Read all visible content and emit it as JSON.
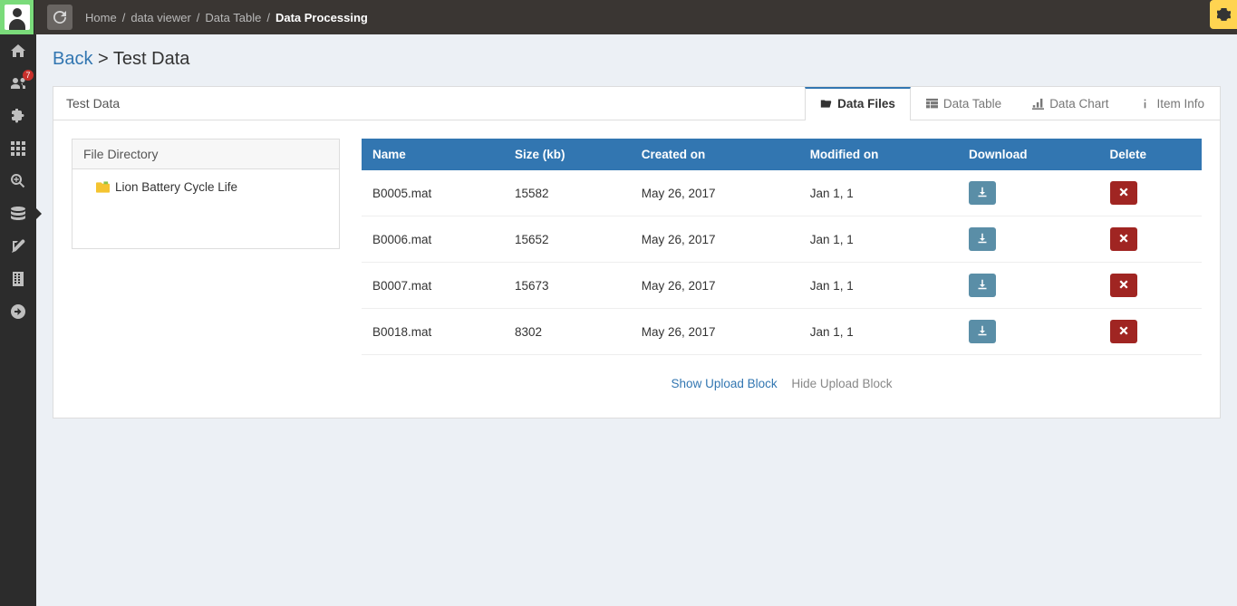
{
  "breadcrumb": {
    "home": "Home",
    "dataviewer": "data viewer",
    "datatable": "Data Table",
    "current": "Data Processing"
  },
  "sidebar": {
    "users_badge": "7"
  },
  "page": {
    "back_label": "Back",
    "separator": " > ",
    "title": "Test Data"
  },
  "panel": {
    "title": "Test Data"
  },
  "tabs": {
    "data_files": "Data Files",
    "data_table": "Data Table",
    "data_chart": "Data Chart",
    "item_info": "Item Info"
  },
  "file_directory": {
    "heading": "File Directory",
    "root_label": "Lion Battery Cycle Life"
  },
  "table": {
    "headers": {
      "name": "Name",
      "size": "Size (kb)",
      "created": "Created on",
      "modified": "Modified on",
      "download": "Download",
      "delete": "Delete"
    },
    "rows": [
      {
        "name": "B0005.mat",
        "size": "15582",
        "created": "May 26, 2017",
        "modified": "Jan 1, 1"
      },
      {
        "name": "B0006.mat",
        "size": "15652",
        "created": "May 26, 2017",
        "modified": "Jan 1, 1"
      },
      {
        "name": "B0007.mat",
        "size": "15673",
        "created": "May 26, 2017",
        "modified": "Jan 1, 1"
      },
      {
        "name": "B0018.mat",
        "size": "8302",
        "created": "May 26, 2017",
        "modified": "Jan 1, 1"
      }
    ]
  },
  "upload": {
    "show": "Show Upload Block",
    "hide": "Hide Upload Block"
  },
  "colors": {
    "topbar_bg": "#3a3633",
    "sidebar_bg": "#2c2c2c",
    "page_bg": "#ecf0f5",
    "primary": "#3276b1",
    "btn_download": "#5a8ea7",
    "btn_delete": "#a02522",
    "gear_bg": "#ffd451",
    "badge_bg": "#c9302c"
  }
}
